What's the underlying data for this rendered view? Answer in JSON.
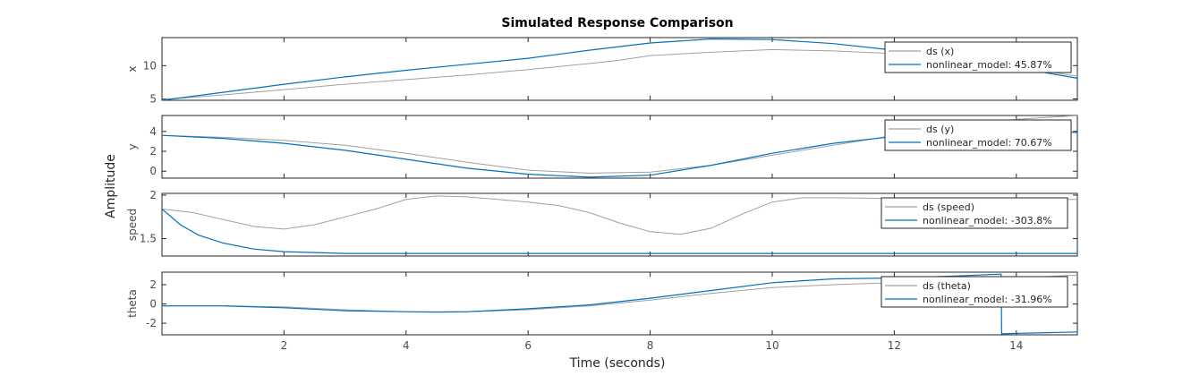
{
  "chart_data": {
    "type": "line",
    "title": "Simulated Response Comparison",
    "xlabel": "Time (seconds)",
    "ylabel": "Amplitude",
    "xlim": [
      0,
      15
    ],
    "xticks": [
      2,
      4,
      6,
      8,
      10,
      12,
      14
    ],
    "colors": {
      "measured": "#a0a0a0",
      "model": "#0072bd"
    },
    "subplots": [
      {
        "name": "x",
        "ylabel": "x",
        "ylim": [
          4.8,
          14.2
        ],
        "yticks": [
          5,
          10
        ],
        "legend": [
          "ds (x)",
          "nonlinear_model: 45.87%"
        ],
        "series": [
          {
            "name": "ds (x)",
            "x": [
              0,
              1,
              2,
              3,
              4,
              5,
              6,
              7,
              7.5,
              8,
              9,
              10,
              11,
              12,
              13,
              14,
              15
            ],
            "y": [
              4.9,
              5.6,
              6.4,
              7.2,
              7.9,
              8.6,
              9.4,
              10.3,
              10.8,
              11.5,
              12.0,
              12.4,
              12.2,
              11.8,
              11.0,
              9.9,
              8.4
            ]
          },
          {
            "name": "nonlinear_model: 45.87%",
            "x": [
              0,
              1,
              2,
              3,
              4,
              5,
              6,
              7,
              8,
              9,
              10,
              11,
              12,
              13,
              14,
              15
            ],
            "y": [
              4.8,
              6.0,
              7.2,
              8.3,
              9.3,
              10.2,
              11.1,
              12.3,
              13.4,
              14.0,
              13.9,
              13.3,
              12.3,
              11.0,
              9.7,
              8.1
            ]
          }
        ]
      },
      {
        "name": "y",
        "ylabel": "y",
        "ylim": [
          -0.7,
          5.6
        ],
        "yticks": [
          0,
          2,
          4
        ],
        "legend": [
          "ds (y)",
          "nonlinear_model: 70.67%"
        ],
        "series": [
          {
            "name": "ds (y)",
            "x": [
              0,
              1,
              2,
              3,
              4,
              5,
              6,
              7,
              8,
              9,
              10,
              11,
              12,
              13,
              14,
              15
            ],
            "y": [
              3.6,
              3.4,
              3.1,
              2.6,
              1.8,
              0.9,
              0.1,
              -0.2,
              -0.1,
              0.6,
              1.6,
              2.6,
              3.6,
              4.5,
              5.2,
              5.6
            ]
          },
          {
            "name": "nonlinear_model: 70.67%",
            "x": [
              0,
              1,
              2,
              3,
              4,
              5,
              6,
              7,
              8,
              9,
              10,
              11,
              12,
              13,
              14,
              15
            ],
            "y": [
              3.6,
              3.3,
              2.8,
              2.1,
              1.2,
              0.3,
              -0.3,
              -0.6,
              -0.4,
              0.6,
              1.8,
              2.8,
              3.5,
              3.9,
              4.0,
              3.9
            ]
          }
        ]
      },
      {
        "name": "speed",
        "ylabel": "speed",
        "ylim": [
          1.3,
          2.02
        ],
        "yticks": [
          1.5,
          2
        ],
        "legend": [
          "ds (speed)",
          "nonlinear_model: -303.8%"
        ],
        "series": [
          {
            "name": "ds (speed)",
            "x": [
              0,
              0.5,
              1,
              1.5,
              2,
              2.5,
              3,
              3.5,
              4,
              4.5,
              5,
              5.5,
              6,
              6.5,
              7,
              7.5,
              8,
              8.5,
              9,
              9.5,
              10,
              10.5,
              11,
              12,
              13,
              14,
              15
            ],
            "y": [
              1.84,
              1.8,
              1.72,
              1.64,
              1.61,
              1.66,
              1.75,
              1.84,
              1.95,
              1.99,
              1.98,
              1.95,
              1.92,
              1.88,
              1.8,
              1.68,
              1.58,
              1.55,
              1.62,
              1.78,
              1.92,
              1.97,
              1.97,
              1.96,
              1.95,
              1.95,
              1.95
            ]
          },
          {
            "name": "nonlinear_model: -303.8%",
            "x": [
              0,
              0.3,
              0.6,
              1,
              1.5,
              2,
              2.5,
              3,
              4,
              6,
              8,
              10,
              12,
              15
            ],
            "y": [
              1.84,
              1.66,
              1.54,
              1.45,
              1.38,
              1.35,
              1.34,
              1.33,
              1.33,
              1.33,
              1.33,
              1.33,
              1.33,
              1.33
            ]
          }
        ]
      },
      {
        "name": "theta",
        "ylabel": "theta",
        "ylim": [
          -3.2,
          3.3
        ],
        "yticks": [
          -2,
          0,
          2
        ],
        "legend": [
          "ds (theta)",
          "nonlinear_model: -31.96%"
        ],
        "series": [
          {
            "name": "ds (theta)",
            "x": [
              0,
              1,
              2,
              3,
              4,
              5,
              6,
              7,
              8,
              9,
              10,
              11,
              12,
              13,
              14,
              15
            ],
            "y": [
              -0.2,
              -0.2,
              -0.3,
              -0.6,
              -0.8,
              -0.8,
              -0.6,
              -0.2,
              0.4,
              1.1,
              1.7,
              2.0,
              2.2,
              2.4,
              2.7,
              3.0
            ]
          },
          {
            "name": "nonlinear_model: -31.96%",
            "x": [
              0,
              1,
              2,
              3,
              4,
              4.5,
              5,
              6,
              7,
              8,
              9,
              10,
              11,
              12,
              13,
              13.75,
              13.76,
              14,
              15
            ],
            "y": [
              -0.2,
              -0.2,
              -0.4,
              -0.7,
              -0.8,
              -0.85,
              -0.8,
              -0.5,
              -0.1,
              0.6,
              1.4,
              2.2,
              2.6,
              2.7,
              2.9,
              3.1,
              -3.1,
              -3.05,
              -2.9
            ]
          }
        ]
      }
    ]
  }
}
